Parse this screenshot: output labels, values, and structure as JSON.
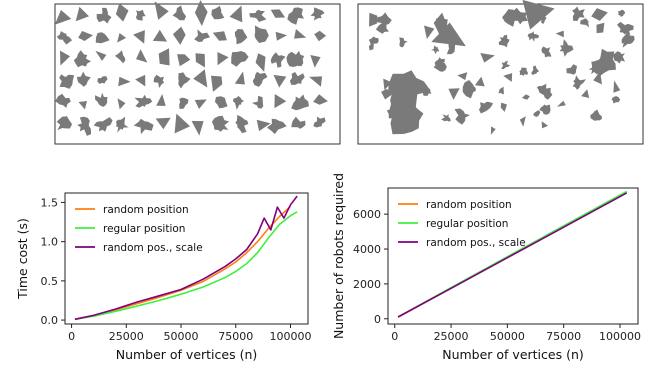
{
  "panels": [
    {
      "name": "regular-grid-polygons"
    },
    {
      "name": "random-scattered-polygons"
    }
  ],
  "colors": {
    "polygon_fill": "#7a7a7a",
    "random_position": "#ff7f0e",
    "regular_position": "#3cf03c",
    "random_pos_scale": "#800080"
  },
  "chart_data": [
    {
      "type": "line",
      "xlabel": "Number of vertices (n)",
      "ylabel": "Time cost (s)",
      "xlim": [
        -3000,
        108000
      ],
      "ylim": [
        -0.05,
        1.62
      ],
      "xticks": [
        0,
        25000,
        50000,
        75000,
        100000
      ],
      "xtick_labels": [
        "0",
        "25000",
        "50000",
        "75000",
        "100000"
      ],
      "yticks": [
        0.0,
        0.5,
        1.0,
        1.5
      ],
      "ytick_labels": [
        "0.0",
        "0.5",
        "1.0",
        "1.5"
      ],
      "legend_position": "upper-left",
      "series": [
        {
          "name": "random position",
          "color": "#ff7f0e",
          "x": [
            1500,
            10000,
            20000,
            30000,
            40000,
            50000,
            60000,
            70000,
            75000,
            80000,
            85000,
            90000,
            95000,
            100000
          ],
          "y": [
            0.01,
            0.06,
            0.13,
            0.21,
            0.29,
            0.38,
            0.49,
            0.65,
            0.74,
            0.86,
            1.0,
            1.17,
            1.32,
            1.45
          ]
        },
        {
          "name": "regular position",
          "color": "#3cf03c",
          "x": [
            1500,
            10000,
            20000,
            30000,
            40000,
            50000,
            60000,
            70000,
            75000,
            80000,
            85000,
            90000,
            95000,
            100000,
            103000
          ],
          "y": [
            0.01,
            0.05,
            0.11,
            0.18,
            0.25,
            0.33,
            0.42,
            0.54,
            0.62,
            0.72,
            0.86,
            1.05,
            1.22,
            1.33,
            1.38
          ]
        },
        {
          "name": "random pos., scale",
          "color": "#800080",
          "x": [
            1500,
            10000,
            20000,
            30000,
            40000,
            50000,
            60000,
            70000,
            75000,
            80000,
            85000,
            88000,
            91000,
            94000,
            97000,
            100000,
            103000
          ],
          "y": [
            0.01,
            0.06,
            0.14,
            0.23,
            0.31,
            0.39,
            0.52,
            0.68,
            0.78,
            0.9,
            1.1,
            1.3,
            1.15,
            1.44,
            1.3,
            1.47,
            1.58
          ]
        }
      ]
    },
    {
      "type": "line",
      "xlabel": "Number of vertices (n)",
      "ylabel": "Number of robots required",
      "xlim": [
        -3000,
        108000
      ],
      "ylim": [
        -300,
        7500
      ],
      "xticks": [
        0,
        25000,
        50000,
        75000,
        100000
      ],
      "xtick_labels": [
        "0",
        "25000",
        "50000",
        "75000",
        "100000"
      ],
      "yticks": [
        0,
        2000,
        4000,
        6000
      ],
      "ytick_labels": [
        "0",
        "2000",
        "4000",
        "6000"
      ],
      "legend_position": "upper-left",
      "series": [
        {
          "name": "random position",
          "color": "#ff7f0e",
          "x": [
            1500,
            25000,
            50000,
            75000,
            103000
          ],
          "y": [
            100,
            1760,
            3520,
            5280,
            7250
          ]
        },
        {
          "name": "regular position",
          "color": "#3cf03c",
          "x": [
            1500,
            25000,
            50000,
            75000,
            103000
          ],
          "y": [
            110,
            1790,
            3560,
            5330,
            7300
          ]
        },
        {
          "name": "random pos., scale",
          "color": "#800080",
          "x": [
            1500,
            25000,
            50000,
            75000,
            103000
          ],
          "y": [
            100,
            1750,
            3500,
            5250,
            7220
          ]
        }
      ]
    }
  ]
}
